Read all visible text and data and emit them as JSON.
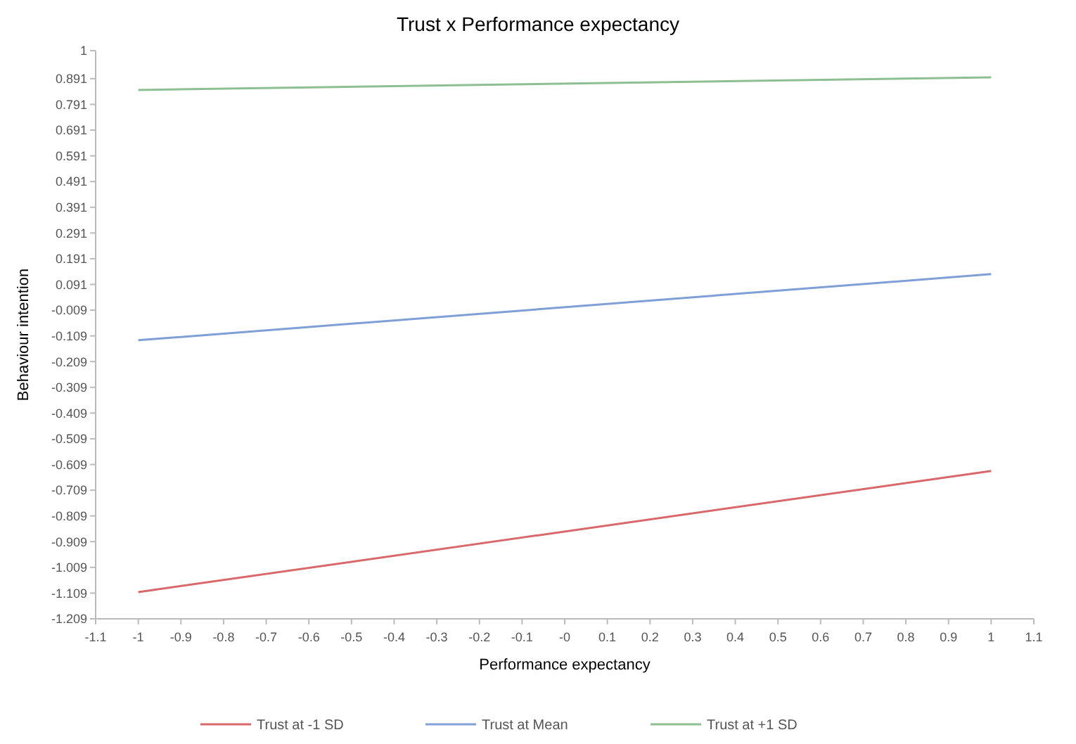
{
  "chart_data": {
    "type": "line",
    "title": "Trust x Performance expectancy",
    "xlabel": "Performance expectancy",
    "ylabel": "Behaviour intention",
    "x": [
      -1,
      1
    ],
    "series": [
      {
        "name": "Trust at -1 SD",
        "color": "#d9686a",
        "values": [
          -1.105,
          -0.634
        ]
      },
      {
        "name": "Trust at Mean",
        "color": "#7f9fd6",
        "values": [
          -0.126,
          0.131
        ]
      },
      {
        "name": "Trust at +1 SD",
        "color": "#8dbf92",
        "values": [
          0.847,
          0.896
        ]
      }
    ],
    "xlim": [
      -1.1,
      1.1
    ],
    "xticks": [
      -1.1,
      -1,
      -0.9,
      -0.8,
      -0.7,
      -0.6,
      -0.5,
      -0.4,
      -0.3,
      -0.2,
      -0.1,
      {
        "value": 0,
        "label": "-0"
      },
      0.1,
      0.2,
      0.3,
      0.4,
      0.5,
      0.6,
      0.7,
      0.8,
      0.9,
      1,
      1.1
    ],
    "ylim": [
      -1.209,
      1
    ],
    "yticks": [
      -1.209,
      -1.109,
      -1.009,
      -0.909,
      -0.809,
      -0.709,
      -0.609,
      -0.509,
      -0.409,
      -0.309,
      -0.209,
      -0.109,
      -0.009,
      0.091,
      0.191,
      0.291,
      0.391,
      0.491,
      0.591,
      0.691,
      0.791,
      0.891,
      1
    ],
    "legend": "bottom",
    "marker": "none",
    "line_style": "solid",
    "grid": false
  }
}
